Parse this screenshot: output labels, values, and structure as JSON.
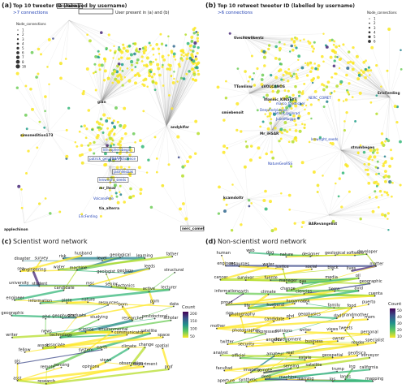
{
  "panels": {
    "a": {
      "label": "(a)",
      "title": "Top 10 tweeter ID (labelled by username)",
      "subtitle": ">7 connections",
      "legend_box_text": "User present in (a) and (b)",
      "legend_title": "Node_connections",
      "legend_values": [
        "1",
        "2",
        "3",
        "4",
        "5",
        "6",
        "7",
        "8",
        "16"
      ],
      "nodes": [
        "eriofinding",
        "gian",
        "simonedition173",
        "andyklfar",
        "mr_ihsar",
        "tia_alterra",
        "applechinon",
        "nerc_comet"
      ],
      "blue_nodes": [
        "lithospherebegin",
        "patrick_gelinrad",
        "fiaARkScience",
        "jasmilesbak",
        "lenwright_seeds",
        "VolcanoPete",
        "EricFerding"
      ]
    },
    "b": {
      "label": "(b)",
      "title": "Top 10 retweet tweeter ID (labelled by username)",
      "subtitle": ">6 connections",
      "legend_title": "Node_connections",
      "legend_values": [
        "1",
        "2",
        "3",
        "4",
        "5",
        "6"
      ],
      "nodes": [
        "theshowlikentz",
        "TTomlinw",
        "sVOLCANOS",
        "Ifiannic_KINSEYT",
        "smiebenoit",
        "Mr_iHSAR",
        "EricFerding",
        "strumbegeo",
        "kcamdottr",
        "BARevangelist"
      ],
      "blue_nodes": [
        "NERC_COMET",
        "patrick_gelinrad",
        "marco_friedlicher",
        "DeepAndyLoppe",
        "JulietMugge",
        "lenwright_seeds",
        "NatureGeoRSS"
      ]
    },
    "c": {
      "label": "(c)",
      "title": "Scientist word network",
      "legend_title": "Count",
      "legend_ticks": [
        "200",
        "150",
        "100",
        "50"
      ],
      "words": [
        "disaster",
        "survey",
        "risk",
        "husband",
        "level",
        "geological",
        "learning",
        "father",
        "sea",
        "engineering",
        "water",
        "machine",
        "geologist",
        "geology",
        "leeds",
        "structural",
        "university",
        "student",
        "candidate",
        "msc",
        "senior",
        "tectonics",
        "active",
        "lecturer",
        "engineer",
        "information",
        "plate",
        "nature",
        "resources",
        "born",
        "ppm",
        "data",
        "geographic",
        "phd",
        "geophysics",
        "graduate",
        "studying",
        "researcher",
        "postdoctoral",
        "scholar",
        "writer",
        "news",
        "technology",
        "science",
        "environmental",
        "communicator",
        "satellite",
        "space",
        "fellow",
        "assoc",
        "associate",
        "system",
        "earth",
        "climate",
        "change",
        "spatial",
        "gis",
        "remote",
        "sensing",
        "opinions",
        "views",
        "observation",
        "department",
        "prof",
        "asst",
        "research"
      ]
    },
    "d": {
      "label": "(d)",
      "title": "Non-scientist word network",
      "legend_title": "Count",
      "legend_ticks": [
        "50",
        "40",
        "30",
        "20",
        "10"
      ],
      "words": [
        "human",
        "web",
        "dog",
        "nature",
        "designer",
        "geological",
        "software",
        "developer",
        "engineer",
        "resources",
        "water",
        "justice",
        "social",
        "black",
        "lives",
        "matter",
        "cancer",
        "survivor",
        "fuente",
        "manager",
        "gas",
        "media",
        "oil",
        "geographic",
        "information",
        "earth",
        "climate",
        "change",
        "ciencias",
        "tierra",
        "avid",
        "cuenta",
        "proud",
        "life",
        "husband",
        "hugamaur",
        "risk",
        "family",
        "food",
        "puerto",
        "rico",
        "photography",
        "candidate",
        "phd",
        "geophysics",
        "dad",
        "grandmother",
        "mom",
        "mother",
        "photographer",
        "expressed",
        "opinions",
        "writer",
        "views",
        "tweets",
        "personal",
        "twitter",
        "security",
        "angeles",
        "development",
        "business",
        "owner",
        "reader",
        "specialist",
        "analyst",
        "official",
        "amateur",
        "real",
        "estate",
        "geospatial",
        "geofisica",
        "surveyor",
        "facultad",
        "imagery",
        "remote",
        "sensing",
        "satellite",
        "trump",
        "ing",
        "california",
        "aperture",
        "synthetic",
        "deep",
        "machine",
        "learning",
        "los",
        "lands",
        "mapping"
      ]
    }
  }
}
